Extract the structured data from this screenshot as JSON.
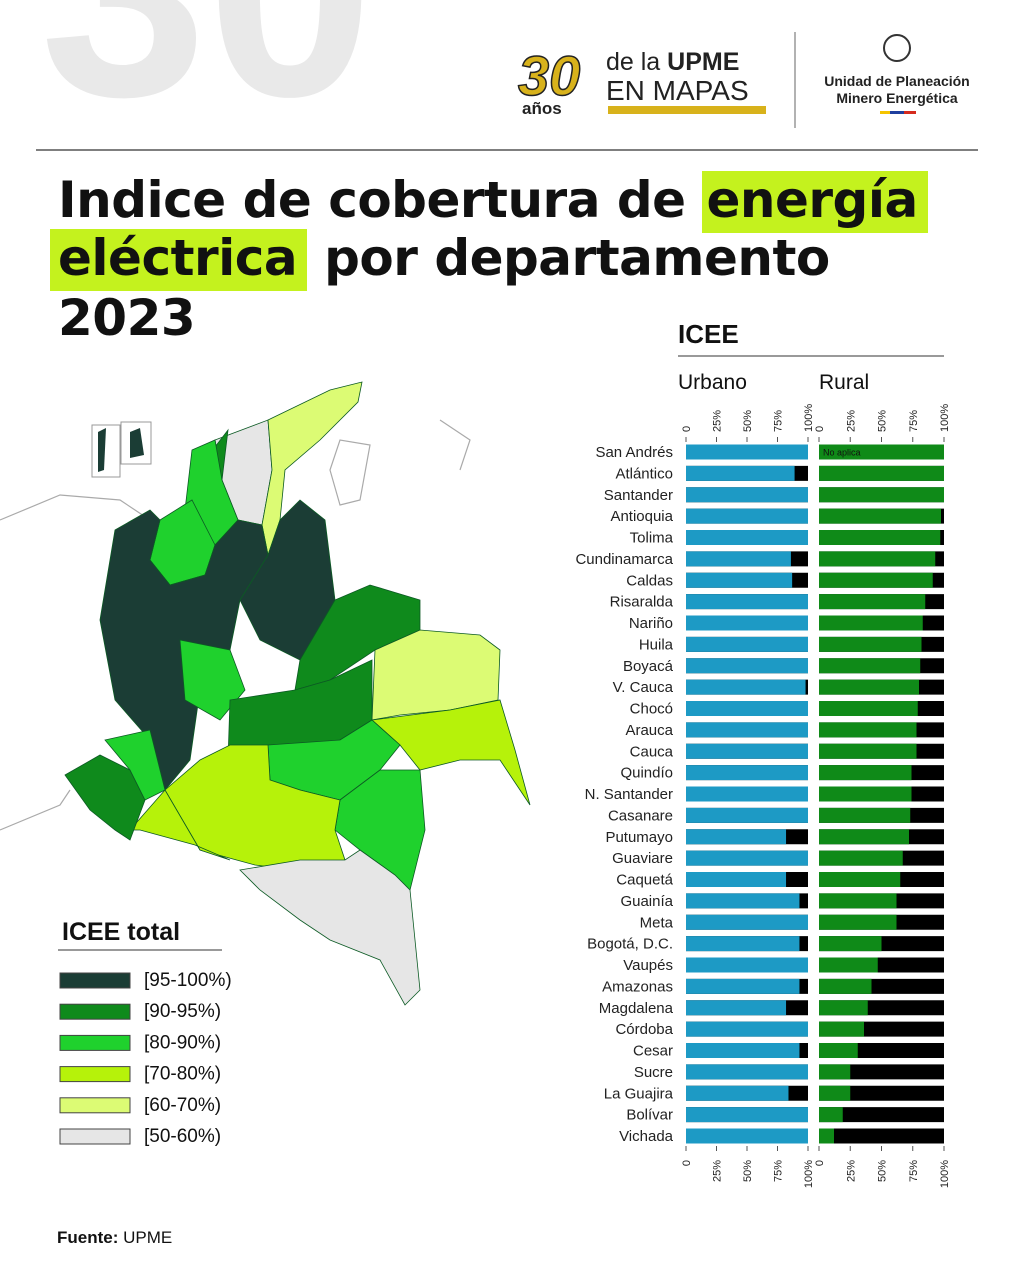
{
  "header": {
    "logo": {
      "number": "30",
      "years": "años",
      "line1_pre": "de la",
      "line1_bold": "UPME",
      "line2": "EN MAPAS"
    },
    "agency": {
      "line1": "Unidad de Planeación",
      "line2": "Minero Energética"
    }
  },
  "title": {
    "part1": "Indice de cobertura de",
    "highlight1": "energía",
    "highlight2": "eléctrica",
    "part2": "por departamento",
    "part3": "2023"
  },
  "map": {
    "legend_title": "ICEE total",
    "legend": [
      {
        "label": "[95-100%)",
        "color": "#1b3d35"
      },
      {
        "label": "[90-95%)",
        "color": "#0f8a1c"
      },
      {
        "label": "[80-90%)",
        "color": "#1fd12d"
      },
      {
        "label": "[70-80%)",
        "color": "#b6f20a"
      },
      {
        "label": "[60-70%)",
        "color": "#dcfb74"
      },
      {
        "label": "[50-60%)",
        "color": "#e6e6e6"
      }
    ]
  },
  "chart_data": {
    "type": "bar",
    "title": "ICEE",
    "annotation": "No aplica",
    "categories": [
      "San Andrés",
      "Atlántico",
      "Santander",
      "Antioquia",
      "Tolima",
      "Cundinamarca",
      "Caldas",
      "Risaralda",
      "Nariño",
      "Huila",
      "Boyacá",
      "V. Cauca",
      "Chocó",
      "Arauca",
      "Cauca",
      "Quindío",
      "N. Santander",
      "Casanare",
      "Putumayo",
      "Guaviare",
      "Caquetá",
      "Guainía",
      "Meta",
      "Bogotá, D.C.",
      "Vaupés",
      "Amazonas",
      "Magdalena",
      "Córdoba",
      "Cesar",
      "Sucre",
      "La Guajira",
      "Bolívar",
      "Vichada"
    ],
    "series": [
      {
        "name": "Urbano",
        "color": "#1d9ac5",
        "values": [
          100,
          89,
          100,
          100,
          100,
          86,
          87,
          100,
          100,
          100,
          100,
          98,
          100,
          100,
          100,
          100,
          100,
          100,
          82,
          100,
          82,
          93,
          100,
          93,
          100,
          93,
          82,
          100,
          93,
          100,
          84,
          100,
          100
        ]
      },
      {
        "name": "Rural",
        "color": "#0f8a18",
        "values": [
          null,
          100,
          100,
          97.6,
          97,
          93,
          91,
          85,
          83,
          82,
          81,
          80,
          79,
          78,
          78,
          74,
          74,
          73,
          72,
          67,
          65,
          62,
          62,
          50,
          47,
          42,
          39,
          36,
          31,
          25,
          25,
          19,
          12
        ]
      }
    ],
    "remainder_color": "#000000",
    "xlim": [
      0,
      100
    ],
    "xticks": [
      0,
      {
        "value": 25,
        "label": "25%"
      },
      {
        "value": 50,
        "label": "50%"
      },
      {
        "value": 75,
        "label": "75%"
      },
      {
        "value": 100,
        "label": "100%"
      }
    ]
  },
  "source": {
    "label": "Fuente:",
    "value": "UPME"
  }
}
